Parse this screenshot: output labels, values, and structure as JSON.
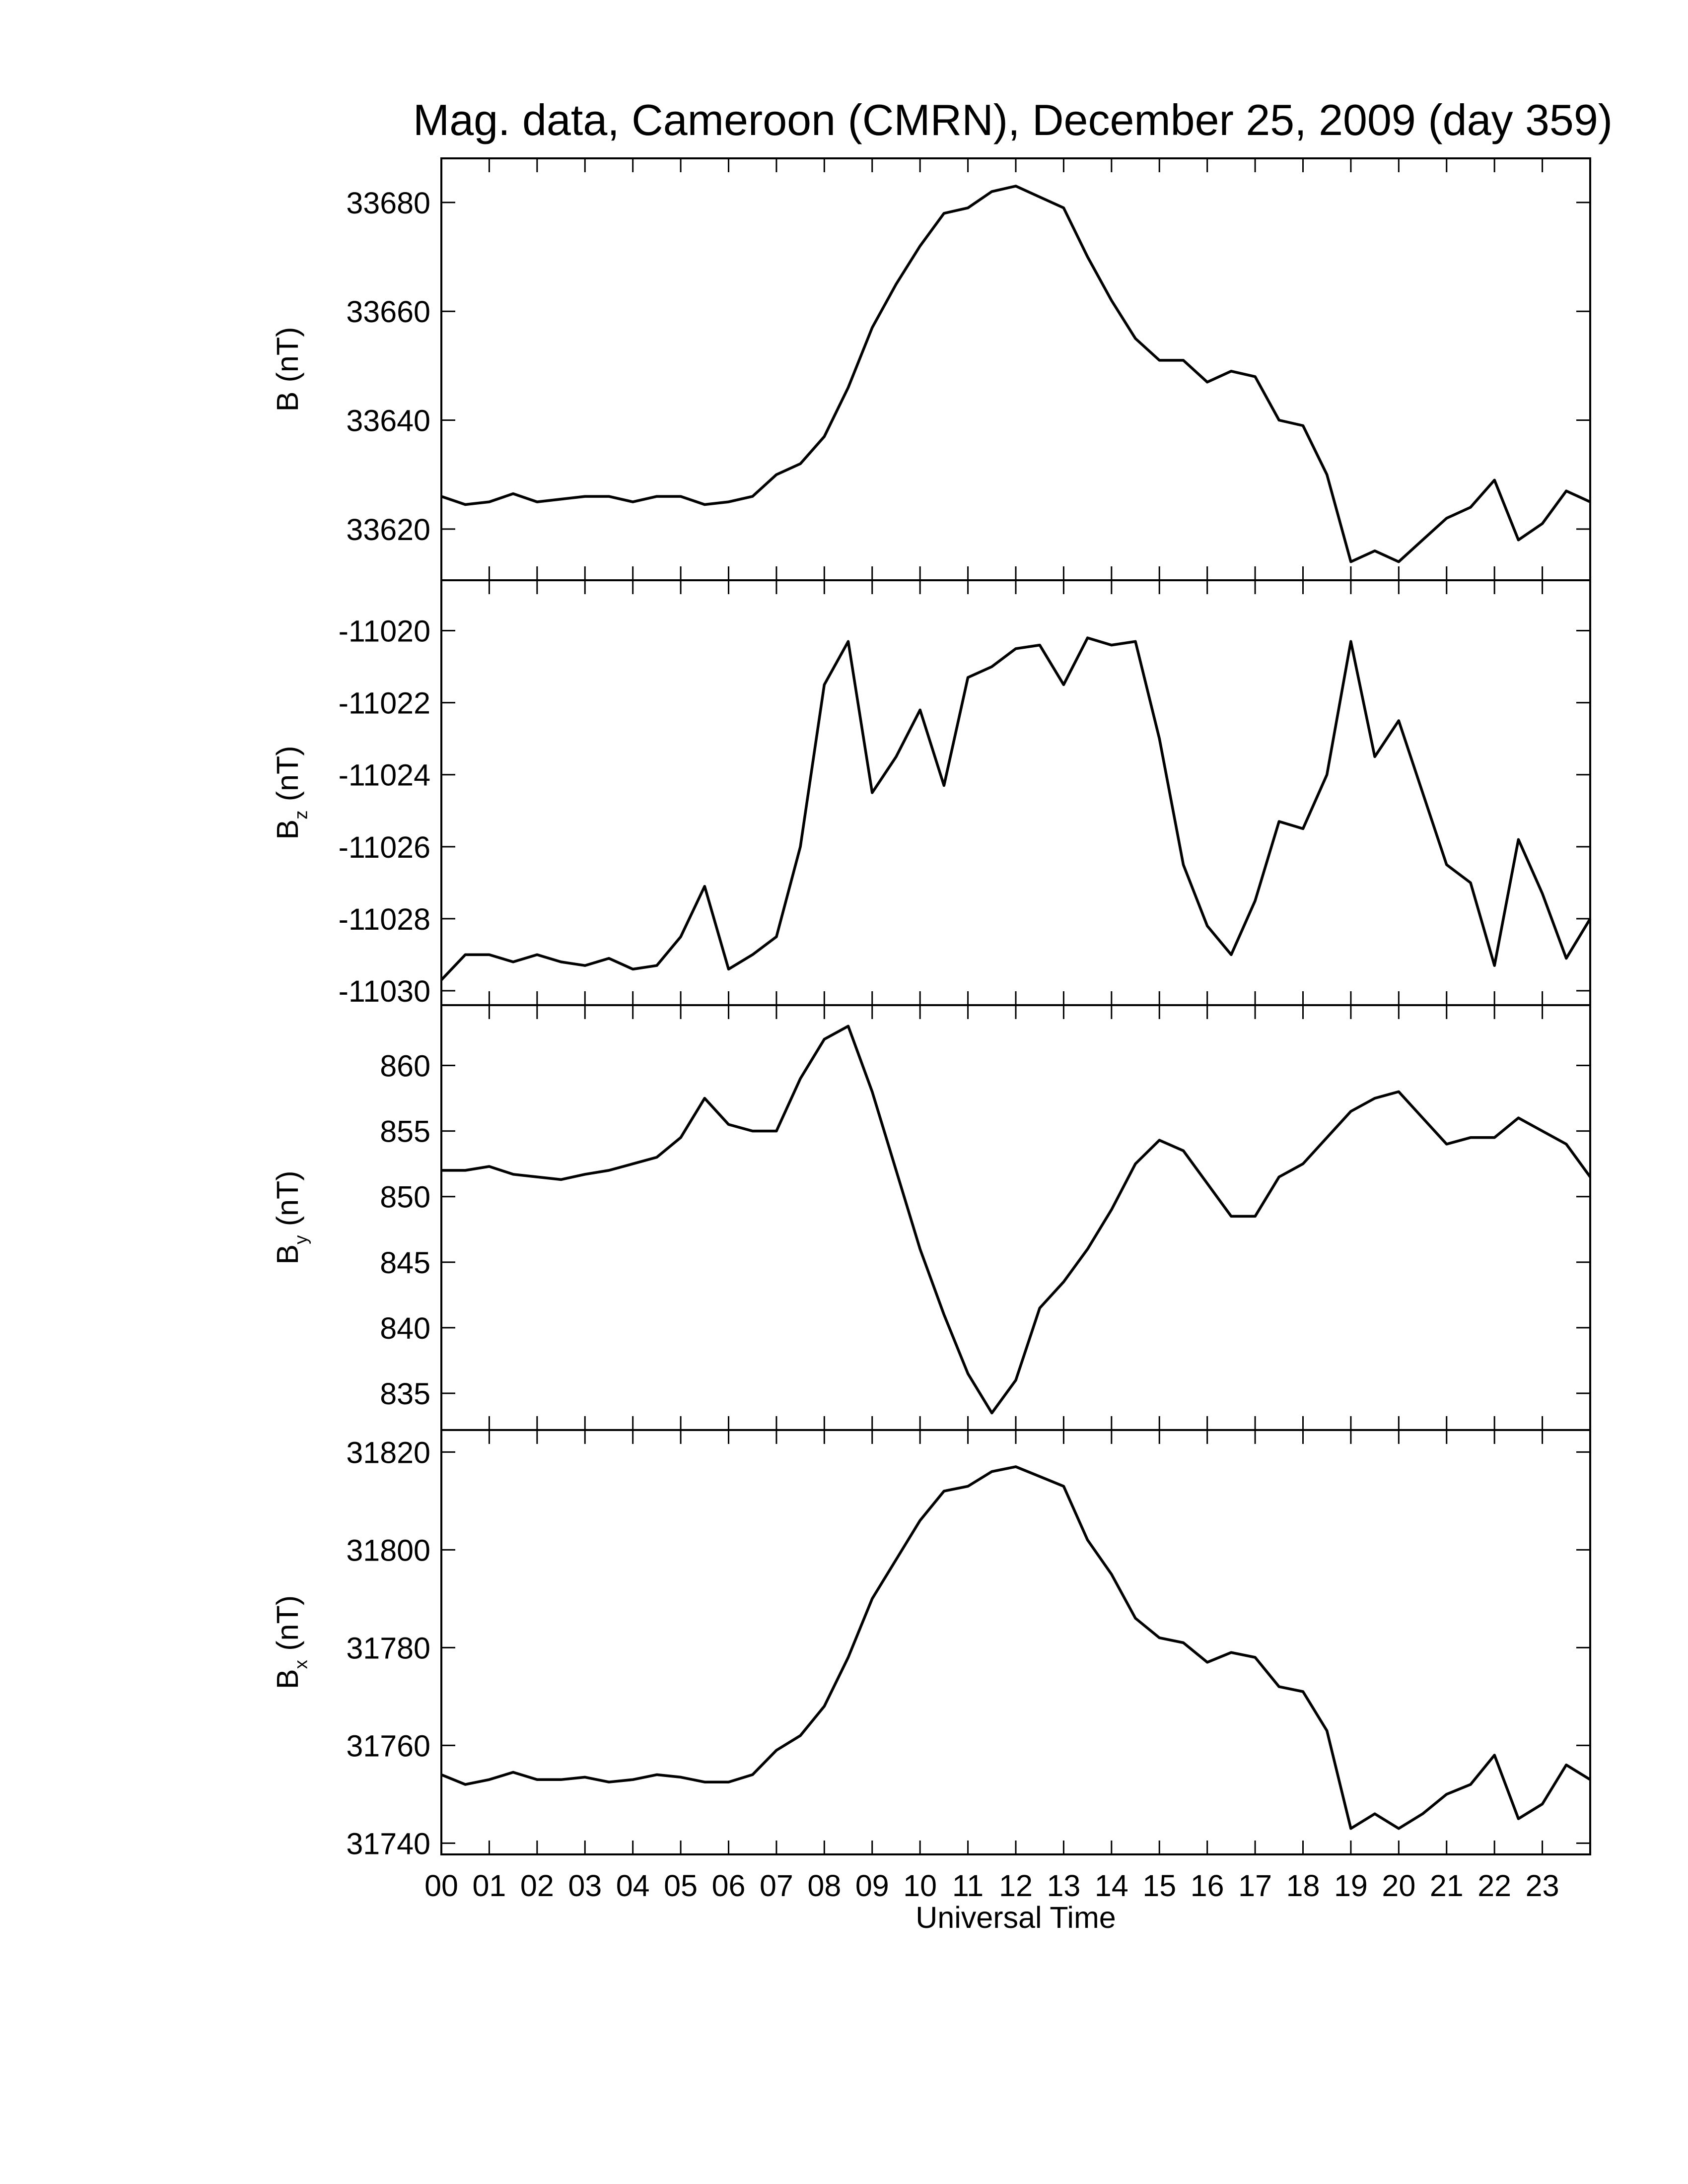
{
  "chart_data": [
    {
      "type": "line",
      "title": "Mag. data, Cameroon (CMRN), December 25, 2009 (day 359)",
      "ylabel": "B",
      "ylabel_unit": "(nT)",
      "color": "#000000",
      "xlim": [
        0,
        24
      ],
      "ylim": [
        33610.6,
        33688.1
      ],
      "yticks": [
        33620,
        33640,
        33660,
        33680
      ],
      "x": [
        0,
        0.5,
        1,
        1.5,
        2,
        2.5,
        3,
        3.5,
        4,
        4.5,
        5,
        5.5,
        6,
        6.5,
        7,
        7.5,
        8,
        8.5,
        9,
        9.5,
        10,
        10.5,
        11,
        11.5,
        12,
        12.5,
        13,
        13.5,
        14,
        14.5,
        15,
        15.5,
        16,
        16.5,
        17,
        17.5,
        18,
        18.5,
        19,
        19.5,
        20,
        20.5,
        21,
        21.5,
        22,
        22.5,
        23,
        23.5,
        24
      ],
      "values": [
        33626,
        33624.5,
        33625,
        33626.5,
        33625,
        33625.5,
        33626,
        33626,
        33625,
        33626,
        33626,
        33624.5,
        33625,
        33626,
        33630,
        33632,
        33637,
        33646,
        33657,
        33665,
        33672,
        33678,
        33679,
        33682,
        33683,
        33681,
        33679,
        33670,
        33662,
        33655,
        33651,
        33651,
        33647,
        33649,
        33648,
        33640,
        33639,
        33630,
        33614,
        33616,
        33614,
        33618,
        33622,
        33624,
        33629,
        33618,
        33621,
        33627,
        33625
      ]
    },
    {
      "type": "line",
      "ylabel": "B",
      "ylabel_subscript": "z",
      "ylabel_unit": "(nT)",
      "color": "#000000",
      "xlim": [
        0,
        24
      ],
      "ylim": [
        -11030.4,
        -11018.6
      ],
      "yticks": [
        -11030,
        -11028,
        -11026,
        -11024,
        -11022,
        -11020
      ],
      "x": [
        0,
        0.5,
        1,
        1.5,
        2,
        2.5,
        3,
        3.5,
        4,
        4.5,
        5,
        5.5,
        6,
        6.5,
        7,
        7.5,
        8,
        8.5,
        9,
        9.5,
        10,
        10.5,
        11,
        11.5,
        12,
        12.5,
        13,
        13.5,
        14,
        14.5,
        15,
        15.5,
        16,
        16.5,
        17,
        17.5,
        18,
        18.5,
        19,
        19.5,
        20,
        20.5,
        21,
        21.5,
        22,
        22.5,
        23,
        23.5,
        24
      ],
      "values": [
        -11029.7,
        -11029,
        -11029,
        -11029.2,
        -11029,
        -11029.2,
        -11029.3,
        -11029.1,
        -11029.4,
        -11029.3,
        -11028.5,
        -11027.1,
        -11029.4,
        -11029,
        -11028.5,
        -11026,
        -11021.5,
        -11020.3,
        -11024.5,
        -11023.5,
        -11022.2,
        -11024.3,
        -11021.3,
        -11021,
        -11020.5,
        -11020.4,
        -11021.5,
        -11020.2,
        -11020.4,
        -11020.3,
        -11023,
        -11026.5,
        -11028.2,
        -11029,
        -11027.5,
        -11025.3,
        -11025.5,
        -11024,
        -11020.3,
        -11023.5,
        -11022.5,
        -11024.5,
        -11026.5,
        -11027,
        -11029.3,
        -11025.8,
        -11027.3,
        -11029.1,
        -11028
      ]
    },
    {
      "type": "line",
      "ylabel": "B",
      "ylabel_subscript": "y",
      "ylabel_unit": "(nT)",
      "color": "#000000",
      "xlim": [
        0,
        24
      ],
      "ylim": [
        832.2,
        864.6
      ],
      "yticks": [
        835,
        840,
        845,
        850,
        855,
        860
      ],
      "x": [
        0,
        0.5,
        1,
        1.5,
        2,
        2.5,
        3,
        3.5,
        4,
        4.5,
        5,
        5.5,
        6,
        6.5,
        7,
        7.5,
        8,
        8.5,
        9,
        9.5,
        10,
        10.5,
        11,
        11.5,
        12,
        12.5,
        13,
        13.5,
        14,
        14.5,
        15,
        15.5,
        16,
        16.5,
        17,
        17.5,
        18,
        18.5,
        19,
        19.5,
        20,
        20.5,
        21,
        21.5,
        22,
        22.5,
        23,
        23.5,
        24
      ],
      "values": [
        852,
        852,
        852.3,
        851.7,
        851.5,
        851.3,
        851.7,
        852,
        852.5,
        853,
        854.5,
        857.5,
        855.5,
        855,
        855,
        859,
        862,
        863,
        858,
        852,
        846,
        841,
        836.5,
        833.5,
        836,
        841.5,
        843.5,
        846,
        849,
        852.5,
        854.3,
        853.5,
        851,
        848.5,
        848.5,
        851.5,
        852.5,
        854.5,
        856.5,
        857.5,
        858,
        856,
        854,
        854.5,
        854.5,
        856,
        855,
        854,
        851.5
      ]
    },
    {
      "type": "line",
      "ylabel": "B",
      "ylabel_subscript": "x",
      "ylabel_unit": "(nT)",
      "xlabel": "Universal Time",
      "color": "#000000",
      "xlim": [
        0,
        24
      ],
      "ylim": [
        31737.7,
        31824.5
      ],
      "yticks": [
        31740,
        31760,
        31780,
        31800,
        31820
      ],
      "xticks": [
        {
          "value": 0,
          "label": "00"
        },
        {
          "value": 1,
          "label": "01"
        },
        {
          "value": 2,
          "label": "02"
        },
        {
          "value": 3,
          "label": "03"
        },
        {
          "value": 4,
          "label": "04"
        },
        {
          "value": 5,
          "label": "05"
        },
        {
          "value": 6,
          "label": "06"
        },
        {
          "value": 7,
          "label": "07"
        },
        {
          "value": 8,
          "label": "08"
        },
        {
          "value": 9,
          "label": "09"
        },
        {
          "value": 10,
          "label": "10"
        },
        {
          "value": 11,
          "label": "11"
        },
        {
          "value": 12,
          "label": "12"
        },
        {
          "value": 13,
          "label": "13"
        },
        {
          "value": 14,
          "label": "14"
        },
        {
          "value": 15,
          "label": "15"
        },
        {
          "value": 16,
          "label": "16"
        },
        {
          "value": 17,
          "label": "17"
        },
        {
          "value": 18,
          "label": "18"
        },
        {
          "value": 19,
          "label": "19"
        },
        {
          "value": 20,
          "label": "20"
        },
        {
          "value": 21,
          "label": "21"
        },
        {
          "value": 22,
          "label": "22"
        },
        {
          "value": 23,
          "label": "23"
        }
      ],
      "x": [
        0,
        0.5,
        1,
        1.5,
        2,
        2.5,
        3,
        3.5,
        4,
        4.5,
        5,
        5.5,
        6,
        6.5,
        7,
        7.5,
        8,
        8.5,
        9,
        9.5,
        10,
        10.5,
        11,
        11.5,
        12,
        12.5,
        13,
        13.5,
        14,
        14.5,
        15,
        15.5,
        16,
        16.5,
        17,
        17.5,
        18,
        18.5,
        19,
        19.5,
        20,
        20.5,
        21,
        21.5,
        22,
        22.5,
        23,
        23.5,
        24
      ],
      "values": [
        31754,
        31752,
        31753,
        31754.5,
        31753,
        31753,
        31753.5,
        31752.5,
        31753,
        31754,
        31753.5,
        31752.5,
        31752.5,
        31754,
        31759,
        31762,
        31768,
        31778,
        31790,
        31798,
        31806,
        31812,
        31813,
        31816,
        31817,
        31815,
        31813,
        31802,
        31795,
        31786,
        31782,
        31781,
        31777,
        31779,
        31778,
        31772,
        31771,
        31763,
        31743,
        31746,
        31743,
        31746,
        31750,
        31752,
        31758,
        31745,
        31748,
        31756,
        31753
      ]
    }
  ]
}
